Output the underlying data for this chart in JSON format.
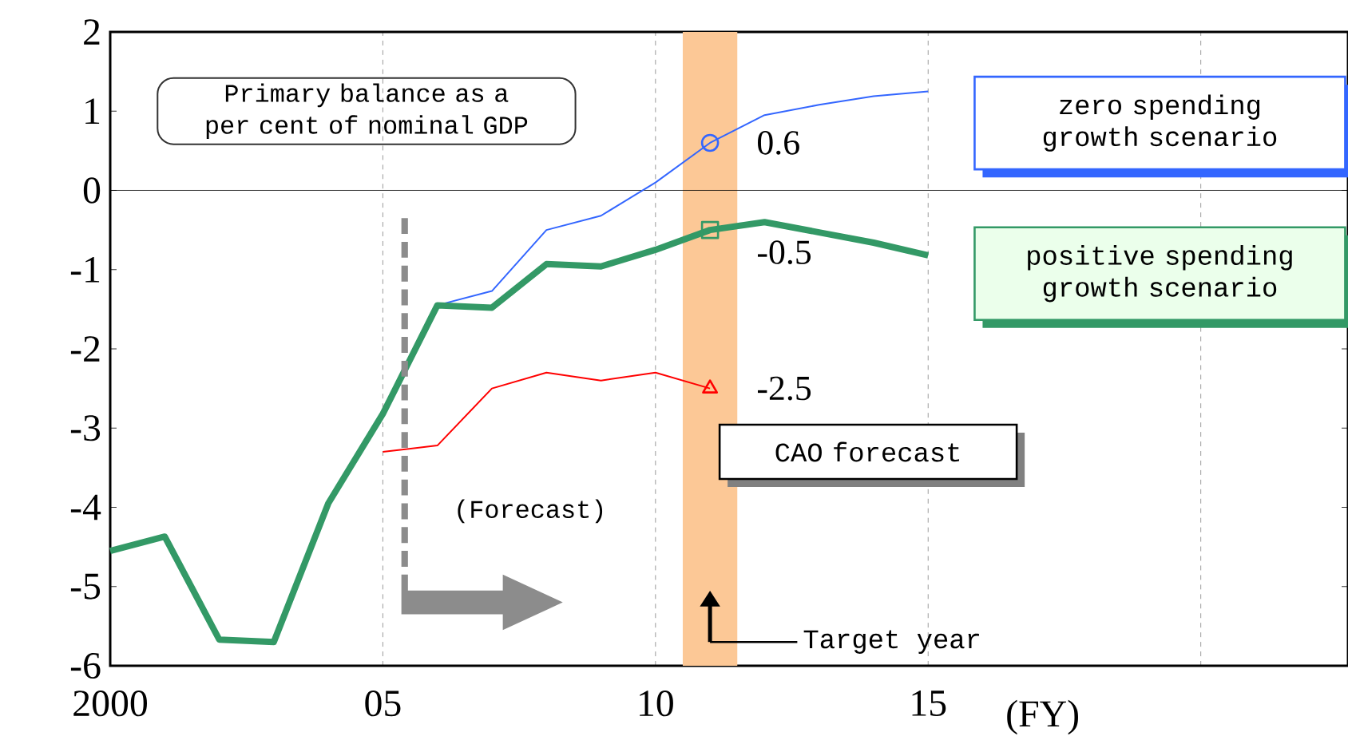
{
  "chart_data": {
    "type": "line",
    "xlabel": "(FY)",
    "x": [
      2000,
      2001,
      2002,
      2003,
      2004,
      2005,
      2006,
      2007,
      2008,
      2009,
      2010,
      2011,
      2012,
      2013,
      2014,
      2015
    ],
    "series": [
      {
        "name": "zero spending growth scenario",
        "color": "#3366ff",
        "values": [
          null,
          null,
          null,
          null,
          null,
          null,
          -1.45,
          -1.27,
          -0.5,
          -0.32,
          0.1,
          0.6,
          0.95,
          1.08,
          1.19,
          1.25
        ],
        "value_labels": [
          null,
          null,
          null,
          null,
          null,
          null,
          null,
          null,
          null,
          null,
          null,
          "0.6",
          null,
          null,
          null,
          null
        ]
      },
      {
        "name": "positive spending growth scenario",
        "color": "#339966",
        "values": [
          -4.55,
          -4.37,
          -5.67,
          -5.7,
          -3.95,
          -2.82,
          -1.45,
          -1.48,
          -0.93,
          -0.96,
          -0.75,
          -0.5,
          -0.4,
          -0.53,
          -0.66,
          -0.82
        ],
        "value_labels": [
          null,
          null,
          null,
          null,
          null,
          null,
          null,
          null,
          null,
          null,
          null,
          "-0.5",
          null,
          null,
          null,
          null
        ]
      },
      {
        "name": "CAO forecast",
        "color": "#ff0000",
        "values": [
          null,
          null,
          null,
          null,
          null,
          -3.3,
          -3.22,
          -2.5,
          -2.3,
          -2.4,
          -2.3,
          -2.5,
          null,
          null,
          null,
          null
        ],
        "value_labels": [
          null,
          null,
          null,
          null,
          null,
          null,
          null,
          null,
          null,
          null,
          null,
          "-2.5",
          null,
          null,
          null,
          null
        ]
      }
    ],
    "xlim": [
      2000,
      2022.7
    ],
    "xticks": [
      {
        "value": 2000,
        "label": "2000"
      },
      {
        "value": 2005,
        "label": "05"
      },
      {
        "value": 2010,
        "label": "10"
      },
      {
        "value": 2015,
        "label": "15"
      },
      {
        "value": 2020,
        "label": null
      }
    ],
    "ylim": [
      -6,
      2
    ],
    "yticks": [
      -6,
      -5,
      -4,
      -3,
      -2,
      -1,
      0,
      1,
      2
    ],
    "grid": "x",
    "legend": "right",
    "ref_lines": [
      {
        "axis": "y",
        "value": 0,
        "color": "#000000"
      }
    ],
    "bands": [
      {
        "axis": "x",
        "from": 2010.5,
        "to": 2011.5,
        "label": "Target year",
        "color": "#fcc896"
      }
    ],
    "annotations": [
      "Primary balance as a per cent of nominal GDP",
      "(Forecast)"
    ]
  }
}
